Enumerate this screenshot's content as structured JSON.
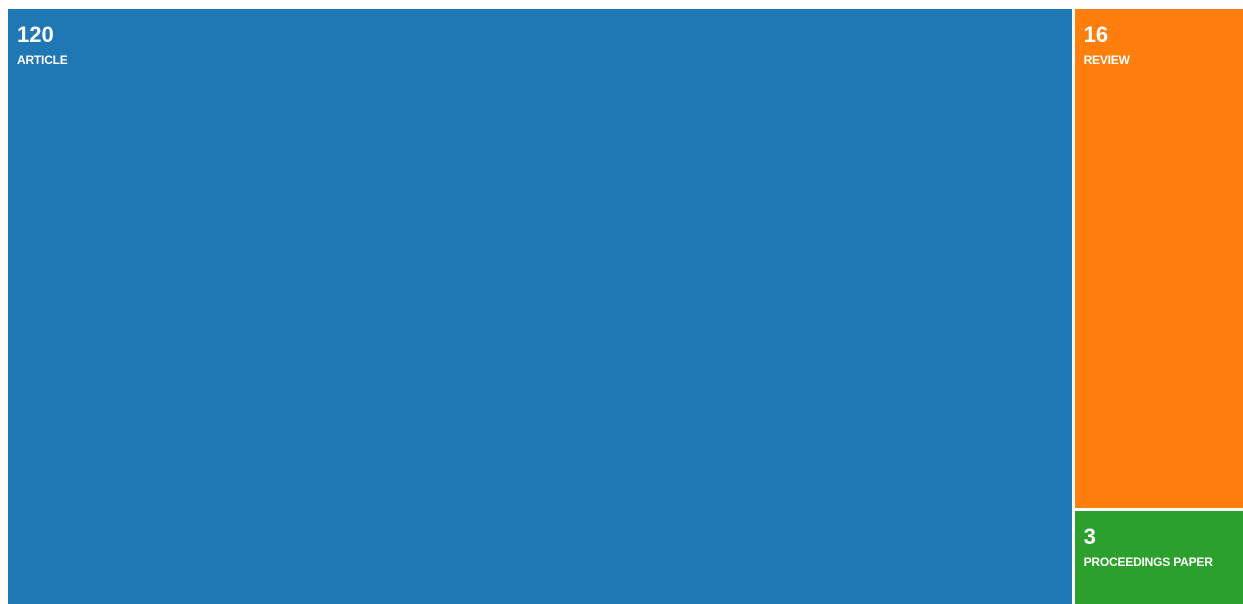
{
  "chart_data": {
    "type": "treemap",
    "items": [
      {
        "label": "ARTICLE",
        "value": 120,
        "color": "#1f77b4"
      },
      {
        "label": "REVIEW",
        "value": 16,
        "color": "#ff7f0e"
      },
      {
        "label": "PROCEEDINGS PAPER",
        "value": 3,
        "color": "#2ca02c"
      }
    ],
    "title": "",
    "legend": "none"
  }
}
